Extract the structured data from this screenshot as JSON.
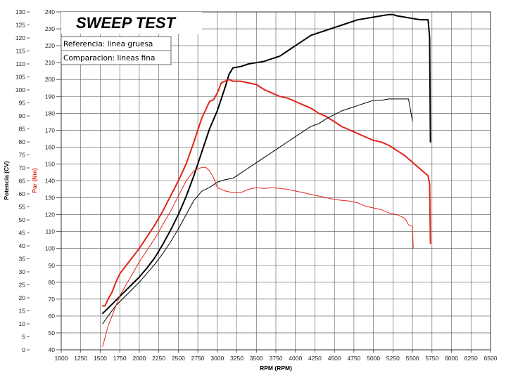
{
  "chart_data": {
    "type": "line",
    "title": "SWEEP TEST",
    "xlabel": "RPM (RPM)",
    "ylabel_left": "Potencia (CV)",
    "ylabel_right": "Par (Nm)",
    "xlim": [
      1000,
      6500
    ],
    "ylim_power": [
      0,
      130
    ],
    "ylim_torque": [
      40,
      240
    ],
    "x_ticks": [
      1000,
      1250,
      1500,
      1750,
      2000,
      2250,
      2500,
      2750,
      3000,
      3250,
      3500,
      3750,
      4000,
      4250,
      4500,
      4750,
      5000,
      5250,
      5500,
      5750,
      6000,
      6250,
      6500
    ],
    "power_ticks": [
      0,
      5,
      10,
      15,
      20,
      25,
      30,
      35,
      40,
      45,
      50,
      55,
      60,
      65,
      70,
      75,
      80,
      85,
      90,
      95,
      100,
      105,
      110,
      115,
      120,
      125,
      130
    ],
    "torque_ticks": [
      40,
      50,
      60,
      70,
      80,
      90,
      100,
      110,
      120,
      130,
      140,
      150,
      160,
      170,
      180,
      190,
      200,
      210,
      220,
      230,
      240
    ],
    "legend": [
      {
        "label": "Referencia: linea gruesa"
      },
      {
        "label": "Comparacion: lineas fina"
      }
    ],
    "grid": true,
    "series": [
      {
        "name": "Potencia referencia",
        "axis": "power",
        "color": "#000000",
        "width": 2,
        "x": [
          1530,
          1600,
          1700,
          1800,
          1900,
          2000,
          2100,
          2200,
          2300,
          2400,
          2500,
          2600,
          2700,
          2800,
          2900,
          3000,
          3100,
          3150,
          3200,
          3300,
          3400,
          3500,
          3600,
          3700,
          3800,
          3900,
          4000,
          4100,
          4200,
          4300,
          4400,
          4500,
          4600,
          4700,
          4800,
          4900,
          5000,
          5100,
          5200,
          5250,
          5300,
          5400,
          5500,
          5600,
          5700,
          5720,
          5730
        ],
        "y": [
          14,
          16,
          19,
          22,
          25,
          28,
          31.5,
          35.5,
          40.5,
          46,
          52,
          59,
          67,
          76,
          85,
          92,
          101,
          106,
          108.5,
          109,
          110,
          110.5,
          111,
          112,
          113,
          115,
          117,
          119,
          121,
          122,
          123,
          124,
          125,
          126,
          127,
          127.5,
          128,
          128.5,
          129,
          129,
          128.5,
          128,
          127.5,
          127,
          127,
          120,
          80
        ]
      },
      {
        "name": "Par referencia",
        "axis": "torque",
        "color": "#e2231a",
        "width": 2,
        "x": [
          1530,
          1560,
          1600,
          1650,
          1700,
          1750,
          1800,
          1900,
          2000,
          2100,
          2200,
          2300,
          2400,
          2500,
          2600,
          2700,
          2800,
          2900,
          2950,
          3000,
          3050,
          3100,
          3150,
          3200,
          3300,
          3400,
          3500,
          3600,
          3700,
          3800,
          3900,
          4000,
          4100,
          4200,
          4300,
          4400,
          4500,
          4600,
          4700,
          4800,
          4900,
          5000,
          5100,
          5200,
          5300,
          5400,
          5500,
          5600,
          5700,
          5720,
          5730
        ],
        "y": [
          66,
          66,
          70,
          74,
          80,
          85,
          88,
          94,
          100,
          107,
          114,
          122,
          131,
          140,
          150,
          163,
          177,
          187,
          188,
          192,
          198,
          199,
          200,
          199,
          199,
          198,
          197,
          194,
          192,
          190,
          189,
          187,
          185,
          183,
          180,
          178,
          175,
          172,
          170,
          168,
          166,
          164,
          163,
          161,
          158,
          155,
          151,
          147,
          143,
          138,
          103
        ]
      },
      {
        "name": "Potencia comparacion",
        "axis": "power",
        "color": "#000000",
        "width": 1,
        "x": [
          1530,
          1600,
          1700,
          1800,
          1900,
          2000,
          2100,
          2200,
          2300,
          2400,
          2500,
          2600,
          2700,
          2800,
          2900,
          3000,
          3100,
          3200,
          3300,
          3400,
          3500,
          3600,
          3700,
          3800,
          3900,
          4000,
          4100,
          4200,
          4300,
          4400,
          4500,
          4600,
          4700,
          4800,
          4900,
          5000,
          5100,
          5200,
          5300,
          5400,
          5450,
          5500
        ],
        "y": [
          10,
          13,
          17,
          20,
          23,
          26,
          29.5,
          33,
          37,
          41.5,
          46.5,
          52,
          57.5,
          61,
          62.5,
          64.5,
          65.5,
          66,
          68,
          70,
          72,
          74,
          76,
          78,
          80,
          82,
          84,
          86,
          87,
          89,
          90.5,
          92,
          93,
          94,
          95,
          96,
          96,
          96.5,
          96.5,
          96.5,
          96.5,
          88
        ]
      },
      {
        "name": "Par comparacion",
        "axis": "torque",
        "color": "#e2231a",
        "width": 1,
        "x": [
          1530,
          1560,
          1600,
          1650,
          1700,
          1750,
          1800,
          1900,
          2000,
          2100,
          2200,
          2300,
          2400,
          2500,
          2600,
          2700,
          2800,
          2850,
          2900,
          2950,
          3000,
          3100,
          3200,
          3300,
          3400,
          3500,
          3600,
          3700,
          3800,
          3900,
          4000,
          4100,
          4200,
          4300,
          4400,
          4500,
          4600,
          4700,
          4800,
          4900,
          5000,
          5100,
          5200,
          5300,
          5400,
          5450,
          5500,
          5510
        ],
        "y": [
          42,
          47,
          54,
          60,
          66,
          72,
          76,
          84,
          92,
          99,
          106,
          114,
          122,
          131,
          140,
          146,
          148,
          148,
          146,
          142,
          136,
          134,
          133,
          133,
          135,
          136,
          135.5,
          136,
          135.5,
          135,
          134,
          133,
          132,
          131,
          130,
          129,
          128.5,
          128,
          127,
          125,
          124,
          123,
          121,
          120,
          118,
          114,
          113,
          100
        ]
      }
    ]
  }
}
